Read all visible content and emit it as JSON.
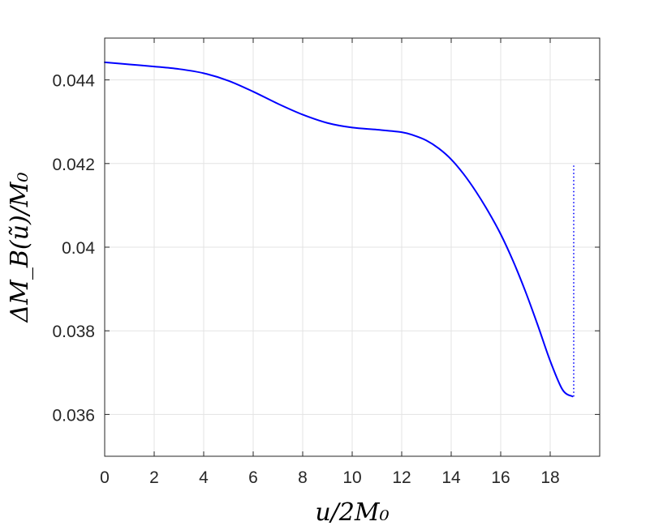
{
  "chart_data": {
    "type": "line",
    "title": "",
    "xlabel": "u/2M₀",
    "ylabel": "ΔM_B(ũ)/M₀",
    "xlim": [
      0,
      20
    ],
    "ylim": [
      0.035,
      0.045
    ],
    "x_ticks": [
      0,
      2,
      4,
      6,
      8,
      10,
      12,
      14,
      16,
      18
    ],
    "x_tick_labels": [
      "0",
      "2",
      "4",
      "6",
      "8",
      "10",
      "12",
      "14",
      "16",
      "18"
    ],
    "y_ticks": [
      0.036,
      0.038,
      0.04,
      0.042,
      0.044
    ],
    "y_tick_labels": [
      "0.036",
      "0.038",
      "0.04",
      "0.042",
      "0.044"
    ],
    "grid": true,
    "legend": "none",
    "series": [
      {
        "style": "solid",
        "color": "#0000ff",
        "x": [
          0,
          1,
          2,
          3,
          4,
          5,
          6,
          7,
          8,
          9,
          10,
          11,
          12,
          12.5,
          13,
          13.5,
          14,
          14.5,
          15,
          15.5,
          16,
          16.5,
          17,
          17.5,
          18,
          18.5,
          18.9
        ],
        "y": [
          0.04442,
          0.04437,
          0.04432,
          0.04426,
          0.04416,
          0.04398,
          0.04372,
          0.04343,
          0.04317,
          0.04297,
          0.04286,
          0.04281,
          0.04275,
          0.04267,
          0.04255,
          0.04236,
          0.0421,
          0.04175,
          0.04133,
          0.04085,
          0.04031,
          0.03967,
          0.03894,
          0.03813,
          0.03728,
          0.03659,
          0.03643
        ]
      },
      {
        "style": "dotted",
        "color": "#0000ff",
        "x": [
          18.95,
          18.95
        ],
        "y": [
          0.03643,
          0.04195
        ]
      }
    ]
  }
}
